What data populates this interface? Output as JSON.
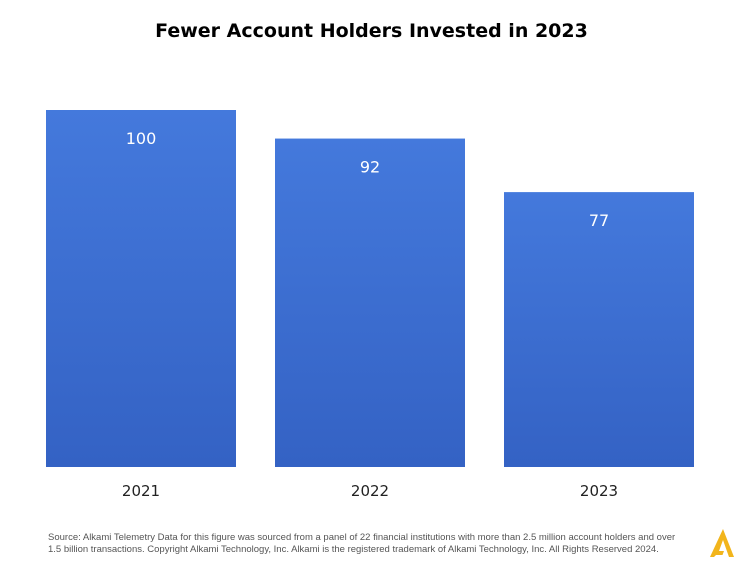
{
  "chart_data": {
    "type": "bar",
    "title": "Fewer Account Holders Invested in 2023",
    "categories": [
      "2021",
      "2022",
      "2023"
    ],
    "values": [
      100,
      92,
      77
    ],
    "data_labels": [
      "100",
      "92",
      "77"
    ],
    "xlabel": "",
    "ylabel": "",
    "ylim": [
      0,
      100
    ],
    "grid": false,
    "legend": "none",
    "bar_color_top": "#4479DC",
    "bar_color_bottom": "#3462C4"
  },
  "footer": {
    "source_text": "Source:  Alkami Telemetry Data for this figure was sourced from a panel of 22 financial institutions with more than 2.5 million account holders and over 1.5 billion transactions. Copyright Alkami Technology, Inc. Alkami is the registered trademark of Alkami Technology, Inc. All Rights Reserved 2024.",
    "logo_icon": "alkami-logo-icon",
    "logo_color": "#F2B51C"
  }
}
